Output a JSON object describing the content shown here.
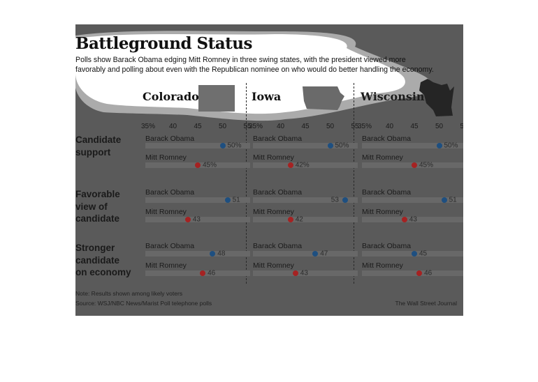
{
  "title": "Battleground Status",
  "subtitle_lines": [
    "Polls show Barack Obama edging Mitt Romney in three swing states, with the president viewed more",
    "favorably and polling about even with the Republican nominee on who would do better handling the economy."
  ],
  "states": [
    "Colorado",
    "Iowa",
    "Wisconsin"
  ],
  "state_icons": [
    "colorado-shape-icon",
    "iowa-shape-icon",
    "wisconsin-shape-icon"
  ],
  "axis_ticks": [
    "35%",
    "40",
    "45",
    "50",
    "55"
  ],
  "row_labels": [
    [
      "Candidate",
      "support"
    ],
    [
      "Favorable",
      "view of",
      "candidate"
    ],
    [
      "Stronger",
      "candidate",
      "on economy"
    ]
  ],
  "candidates": [
    "Barack Obama",
    "Mitt Romney"
  ],
  "colors": {
    "obama": "#1e4f80",
    "romney": "#a52222",
    "highlight": "#ffffff"
  },
  "chart_data": {
    "type": "scatter",
    "title": "Battleground Status",
    "xlim": [
      35,
      55
    ],
    "x_ticks": [
      35,
      40,
      45,
      50,
      55
    ],
    "x_tick_labels": [
      "35%",
      "40",
      "45",
      "50",
      "55"
    ],
    "panels": [
      "Colorado",
      "Iowa",
      "Wisconsin"
    ],
    "measures": [
      "Candidate support",
      "Favorable view of candidate",
      "Stronger candidate on economy"
    ],
    "series": [
      {
        "name": "Barack Obama",
        "values": [
          [
            50,
            51,
            48
          ],
          [
            50,
            53,
            47
          ],
          [
            50,
            51,
            45
          ]
        ],
        "labels": [
          [
            "50%",
            "51",
            "48"
          ],
          [
            "50%",
            "53",
            "47"
          ],
          [
            "50%",
            "51",
            "45"
          ]
        ]
      },
      {
        "name": "Mitt Romney",
        "values": [
          [
            45,
            43,
            46
          ],
          [
            42,
            42,
            43
          ],
          [
            45,
            43,
            46
          ]
        ],
        "labels": [
          [
            "45%",
            "43",
            "46"
          ],
          [
            "42%",
            "42",
            "43"
          ],
          [
            "45%",
            "43",
            "46"
          ]
        ]
      }
    ],
    "grid": false
  },
  "note": "Note: Results shown among likely voters",
  "source": "Source: WSJ/NBC News/Marist Poll telephone polls",
  "credit": "The Wall Street Journal"
}
